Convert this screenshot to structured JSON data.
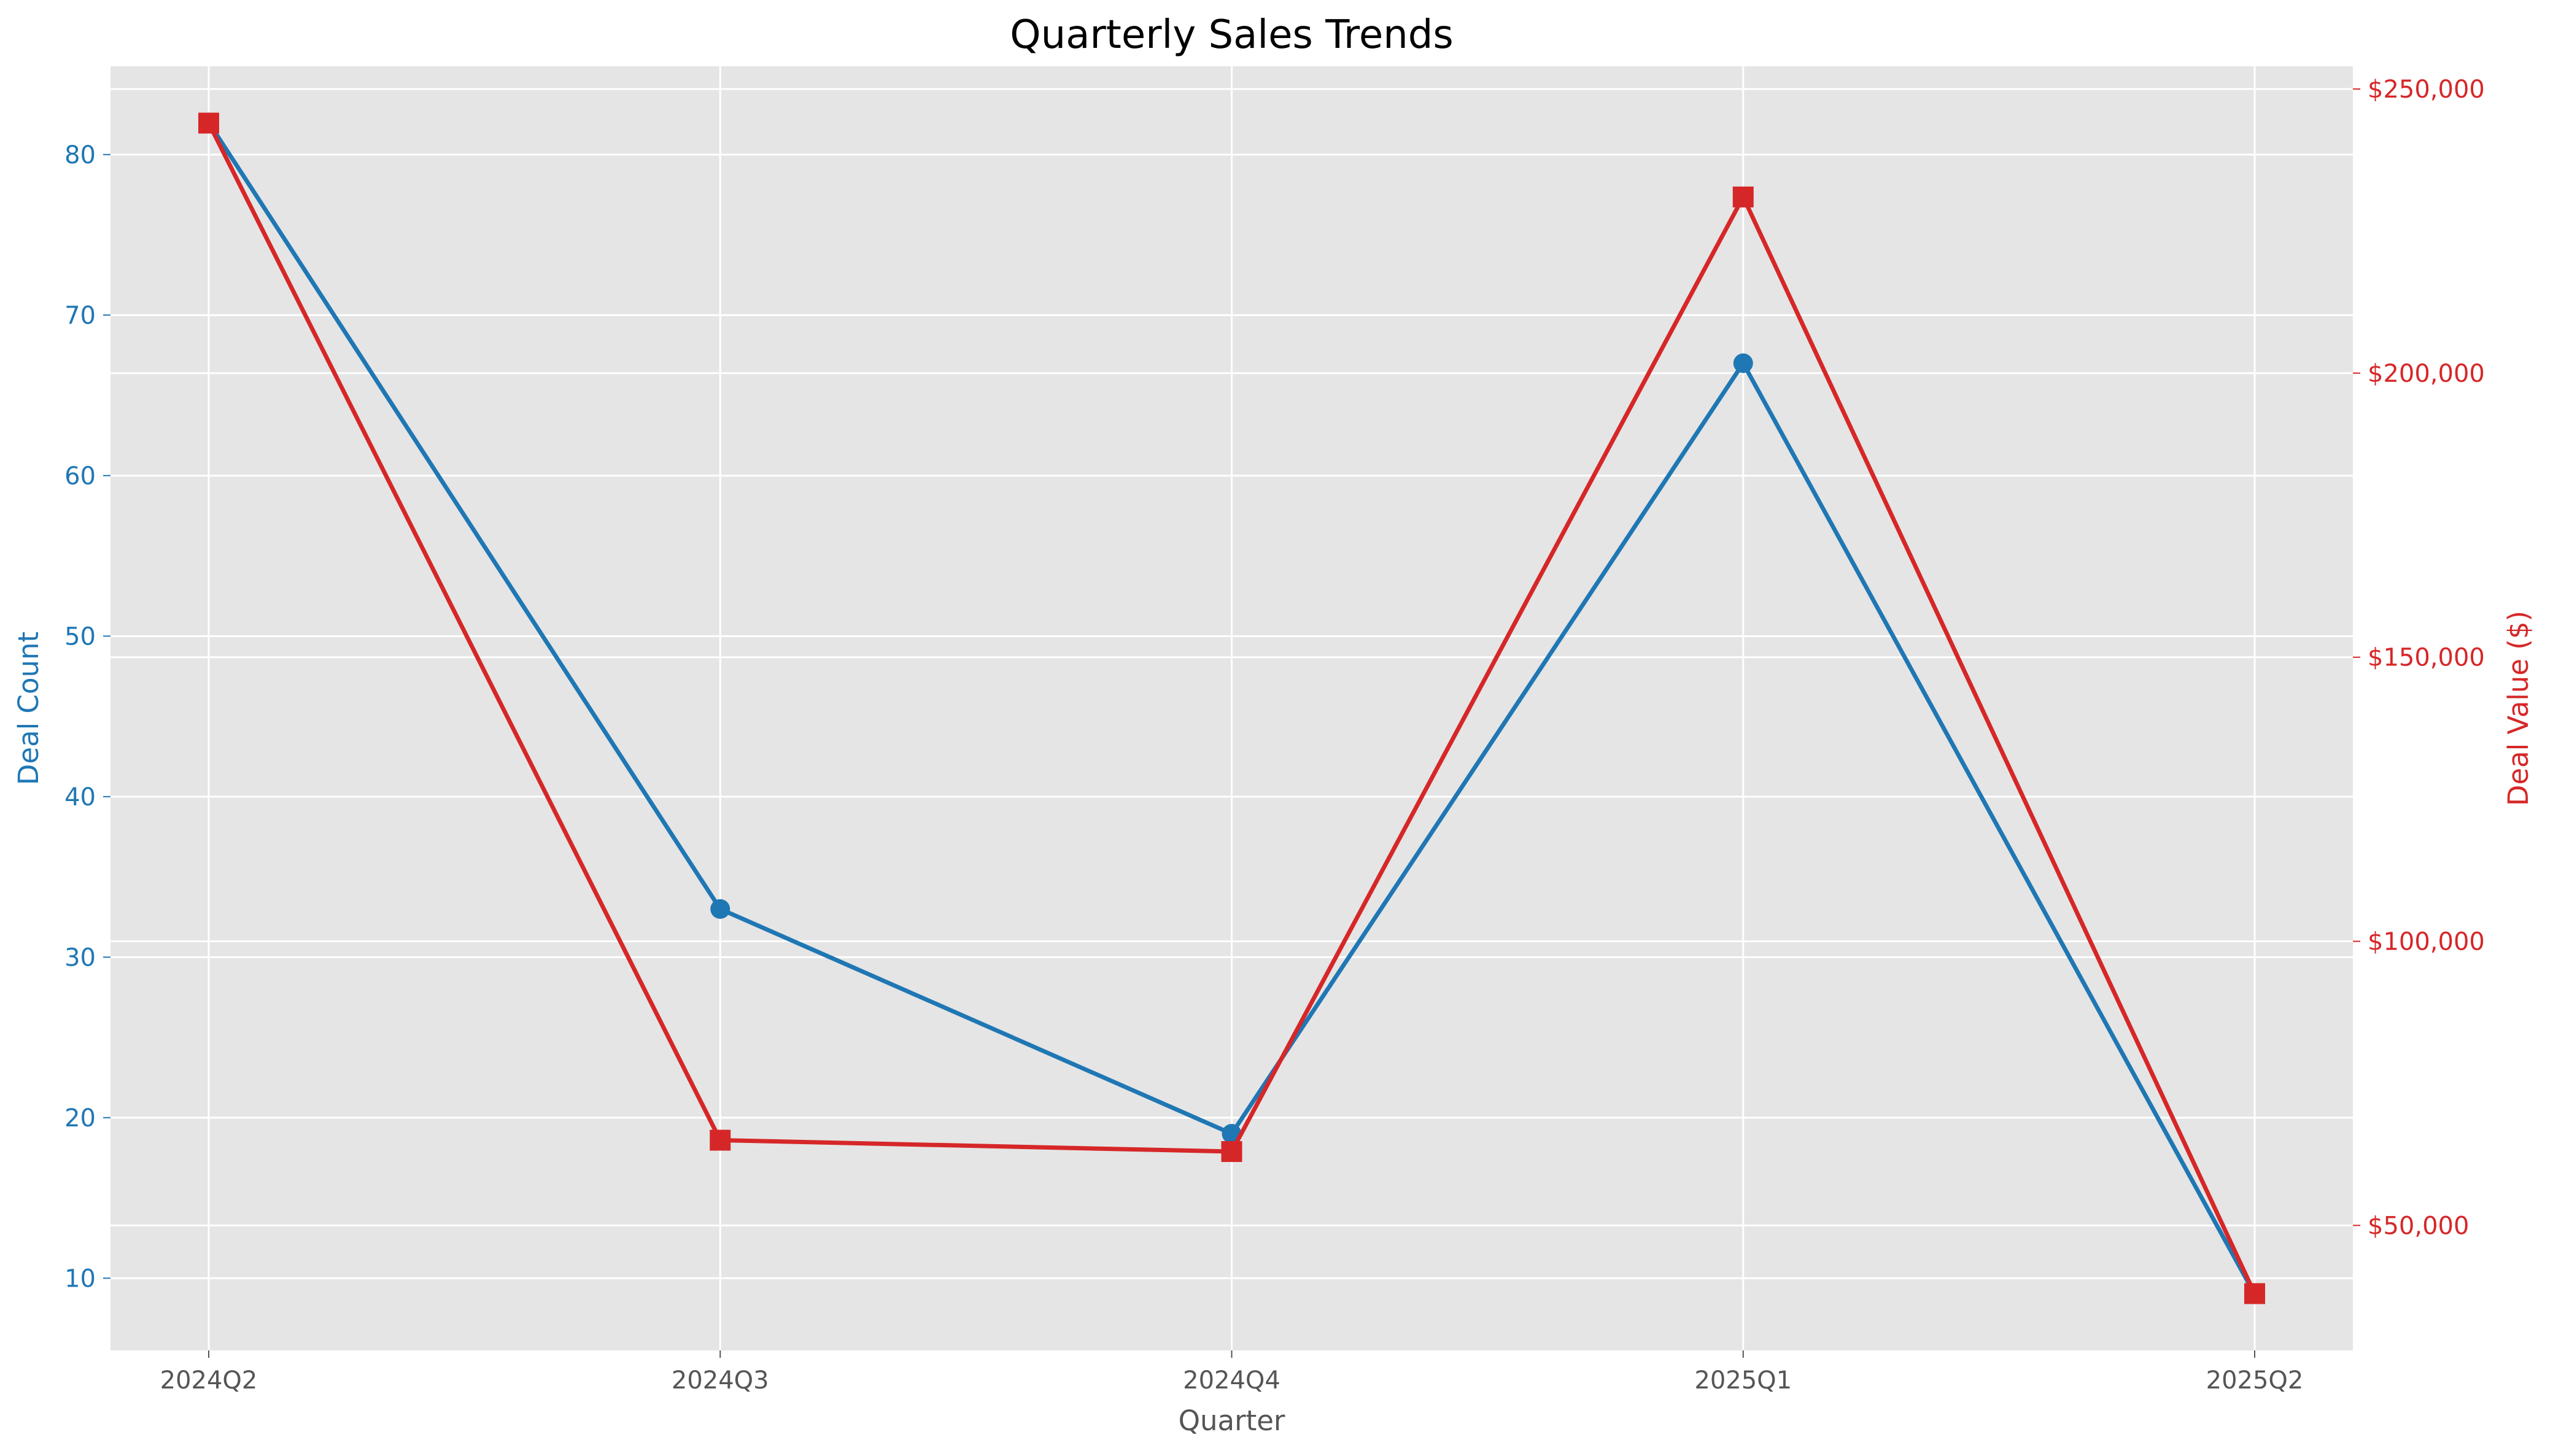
{
  "colors": {
    "background": "#ffffff",
    "plot_background": "#e5e5e5",
    "grid": "#ffffff",
    "deal_count": "#1f77b4",
    "deal_value": "#d62728",
    "text": "#555555",
    "title": "#000000"
  },
  "chart_data": {
    "type": "line",
    "title": "Quarterly Sales Trends",
    "xlabel": "Quarter",
    "ylabel_left": "Deal Count",
    "ylabel_right": "Deal Value ($)",
    "categories": [
      "2024Q2",
      "2024Q3",
      "2024Q4",
      "2025Q1",
      "2025Q2"
    ],
    "grid": true,
    "axes": {
      "y_left": {
        "range": [
          5.5,
          85.5
        ],
        "ticks": [
          10,
          20,
          30,
          40,
          50,
          60,
          70,
          80
        ],
        "tick_labels": [
          "10",
          "20",
          "30",
          "40",
          "50",
          "60",
          "70",
          "80"
        ]
      },
      "y_right": {
        "range": [
          28000,
          254000
        ],
        "ticks": [
          50000,
          100000,
          150000,
          200000,
          250000
        ],
        "tick_labels": [
          "$50,000",
          "$100,000",
          "$150,000",
          "$200,000",
          "$250,000"
        ]
      }
    },
    "series": [
      {
        "key": "deal_count",
        "axis": "left",
        "marker": "circle",
        "values": [
          82,
          33,
          19,
          67,
          9
        ]
      },
      {
        "key": "deal_value",
        "axis": "right",
        "marker": "square",
        "values": [
          244000,
          65000,
          63000,
          231000,
          38000
        ]
      }
    ]
  }
}
